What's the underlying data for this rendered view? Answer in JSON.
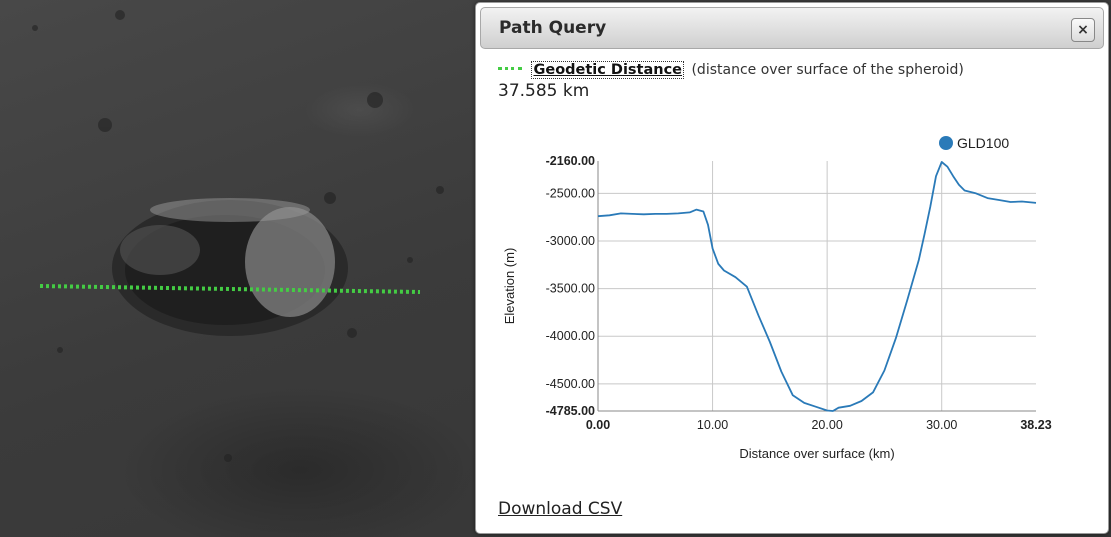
{
  "panel": {
    "title": "Path Query",
    "close_label": "×",
    "distance_label": "Geodetic Distance",
    "distance_desc": "(distance over surface of the spheroid)",
    "distance_value": "37.585 km",
    "download_label": "Download CSV"
  },
  "colors": {
    "path_line": "#44cc44",
    "series": "#2a7ab8",
    "grid": "#c8c8c8"
  },
  "icons": {
    "close": "close-icon",
    "path_swatch": "dotted-line-icon",
    "legend_marker": "legend-dot-icon"
  },
  "chart_data": {
    "type": "line",
    "title": "",
    "xlabel": "Distance over surface (km)",
    "ylabel": "Elevation (m)",
    "xlim": [
      0,
      38.23
    ],
    "ylim": [
      -4785,
      -2160
    ],
    "x_ticks": [
      {
        "value": 0,
        "label": "0.00",
        "bold": true
      },
      {
        "value": 10,
        "label": "10.00",
        "bold": false
      },
      {
        "value": 20,
        "label": "20.00",
        "bold": false
      },
      {
        "value": 30,
        "label": "30.00",
        "bold": false
      },
      {
        "value": 38.23,
        "label": "38.23",
        "bold": true
      }
    ],
    "y_ticks": [
      {
        "value": -2160,
        "label": "-2160.00",
        "bold": true
      },
      {
        "value": -2500,
        "label": "-2500.00",
        "bold": false
      },
      {
        "value": -3000,
        "label": "-3000.00",
        "bold": false
      },
      {
        "value": -3500,
        "label": "-3500.00",
        "bold": false
      },
      {
        "value": -4000,
        "label": "-4000.00",
        "bold": false
      },
      {
        "value": -4500,
        "label": "-4500.00",
        "bold": false
      },
      {
        "value": -4785,
        "label": "-4785.00",
        "bold": true
      }
    ],
    "grid": true,
    "legend_position": "top-right",
    "series": [
      {
        "name": "GLD100",
        "x": [
          0,
          1,
          2,
          3,
          4,
          5,
          6,
          7,
          8,
          8.6,
          9.2,
          9.6,
          10,
          10.5,
          11,
          12,
          13,
          14,
          15,
          16,
          17,
          18,
          19,
          20,
          20.5,
          21,
          22,
          23,
          24,
          25,
          26,
          27,
          28,
          28.5,
          29,
          29.5,
          30,
          30.5,
          31,
          31.5,
          32,
          33,
          34,
          35,
          36,
          37,
          38.23
        ],
        "y": [
          -2740,
          -2730,
          -2710,
          -2715,
          -2720,
          -2715,
          -2715,
          -2710,
          -2700,
          -2670,
          -2690,
          -2830,
          -3080,
          -3240,
          -3310,
          -3380,
          -3480,
          -3780,
          -4060,
          -4370,
          -4620,
          -4700,
          -4740,
          -4780,
          -4785,
          -4750,
          -4730,
          -4680,
          -4590,
          -4360,
          -4020,
          -3620,
          -3200,
          -2930,
          -2640,
          -2320,
          -2170,
          -2220,
          -2320,
          -2410,
          -2470,
          -2500,
          -2550,
          -2570,
          -2590,
          -2585,
          -2600
        ]
      }
    ]
  }
}
